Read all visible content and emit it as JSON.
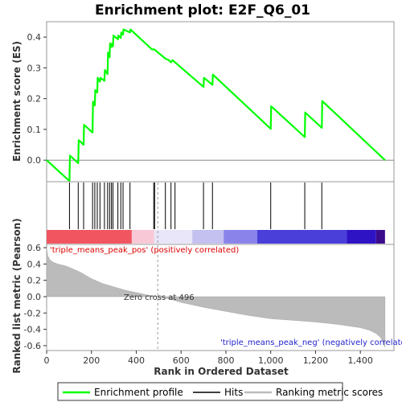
{
  "chart_data": {
    "type": "line",
    "title": "Enrichment plot: E2F_Q6_01",
    "top_panel": {
      "ylabel": "Enrichment score (ES)",
      "ylim": [
        -0.07,
        0.45
      ],
      "yticks": [
        0.0,
        0.1,
        0.2,
        0.3,
        0.4
      ],
      "ytick_labels": [
        "0.0",
        "0.1",
        "0.2",
        "0.3",
        "0.4"
      ],
      "series": [
        {
          "name": "Enrichment profile",
          "color": "#00ff00",
          "x": [
            0,
            102,
            104,
            141,
            143,
            165,
            167,
            205,
            207,
            215,
            217,
            226,
            228,
            238,
            240,
            258,
            260,
            272,
            274,
            281,
            283,
            289,
            291,
            296,
            298,
            318,
            320,
            331,
            333,
            341,
            343,
            372,
            374,
            470,
            480,
            530,
            545,
            555,
            562,
            570,
            700,
            702,
            740,
            742,
            1000,
            1002,
            1152,
            1154,
            1228,
            1230,
            1510
          ],
          "y": [
            0.0,
            -0.068,
            0.015,
            -0.01,
            0.065,
            0.05,
            0.115,
            0.09,
            0.19,
            0.178,
            0.228,
            0.22,
            0.268,
            0.255,
            0.268,
            0.258,
            0.293,
            0.28,
            0.35,
            0.335,
            0.38,
            0.368,
            0.378,
            0.37,
            0.405,
            0.393,
            0.405,
            0.397,
            0.415,
            0.408,
            0.425,
            0.415,
            0.425,
            0.36,
            0.36,
            0.33,
            0.325,
            0.318,
            0.325,
            0.32,
            0.238,
            0.268,
            0.245,
            0.278,
            0.102,
            0.175,
            0.075,
            0.155,
            0.105,
            0.192,
            0.0
          ]
        }
      ]
    },
    "hits_panel": {
      "hit_positions": [
        102,
        141,
        165,
        205,
        215,
        226,
        238,
        258,
        272,
        281,
        289,
        296,
        318,
        331,
        341,
        372,
        478,
        482,
        530,
        555,
        573,
        700,
        740,
        1000,
        1152,
        1228
      ],
      "colorbar": {
        "segments": [
          {
            "from": 0,
            "to": 380,
            "color": "#f05560"
          },
          {
            "from": 380,
            "to": 480,
            "color": "#f9c8d6"
          },
          {
            "from": 480,
            "to": 650,
            "color": "#e8e6f8"
          },
          {
            "from": 650,
            "to": 790,
            "color": "#c4c0f0"
          },
          {
            "from": 790,
            "to": 940,
            "color": "#8a84ea"
          },
          {
            "from": 940,
            "to": 1340,
            "color": "#4a3fd8"
          },
          {
            "from": 1340,
            "to": 1470,
            "color": "#2e13c4"
          },
          {
            "from": 1470,
            "to": 1510,
            "color": "#3a0c8c"
          }
        ]
      }
    },
    "bottom_panel": {
      "ylabel": "Ranked list metric (Pearson)",
      "xlabel": "Rank in Ordered Dataset",
      "ylim": [
        -0.66,
        0.64
      ],
      "yticks": [
        -0.6,
        -0.4,
        -0.2,
        0.0,
        0.2,
        0.4,
        0.6
      ],
      "ytick_labels": [
        "-0.6",
        "-0.4",
        "-0.2",
        "0.0",
        "0.2",
        "0.4",
        "0.6"
      ],
      "xlim": [
        0,
        1550
      ],
      "xticks": [
        0,
        200,
        400,
        600,
        800,
        1000,
        1200,
        1400
      ],
      "xtick_labels": [
        "0",
        "200",
        "400",
        "600",
        "800",
        "1,000",
        "1,200",
        "1,400"
      ],
      "metric_curve": {
        "x": [
          0,
          5,
          15,
          30,
          50,
          80,
          100,
          150,
          200,
          250,
          300,
          350,
          400,
          450,
          496,
          550,
          600,
          650,
          700,
          800,
          900,
          1000,
          1100,
          1200,
          1300,
          1350,
          1400,
          1440,
          1470,
          1490,
          1500,
          1510
        ],
        "y": [
          0.6,
          0.5,
          0.45,
          0.42,
          0.4,
          0.38,
          0.36,
          0.3,
          0.22,
          0.16,
          0.12,
          0.08,
          0.05,
          0.02,
          0.0,
          -0.03,
          -0.07,
          -0.1,
          -0.13,
          -0.18,
          -0.23,
          -0.27,
          -0.29,
          -0.31,
          -0.34,
          -0.36,
          -0.38,
          -0.41,
          -0.45,
          -0.5,
          -0.55,
          -0.62
        ]
      },
      "zero_cross_rank": 496,
      "annotations": {
        "pos_label": "'triple_means_peak_pos' (positively correlated)",
        "neg_label": "'triple_means_peak_neg' (negatively correlated)",
        "zero_cross": "Zero cross at 496",
        "pos_color": "#dd0000",
        "neg_color": "#2222cc"
      }
    },
    "legend": {
      "items": [
        {
          "label": "Enrichment profile",
          "color": "#00ff00"
        },
        {
          "label": "Hits",
          "color": "#000000"
        },
        {
          "label": "Ranking metric scores",
          "color": "#bbbbbb"
        }
      ]
    }
  }
}
